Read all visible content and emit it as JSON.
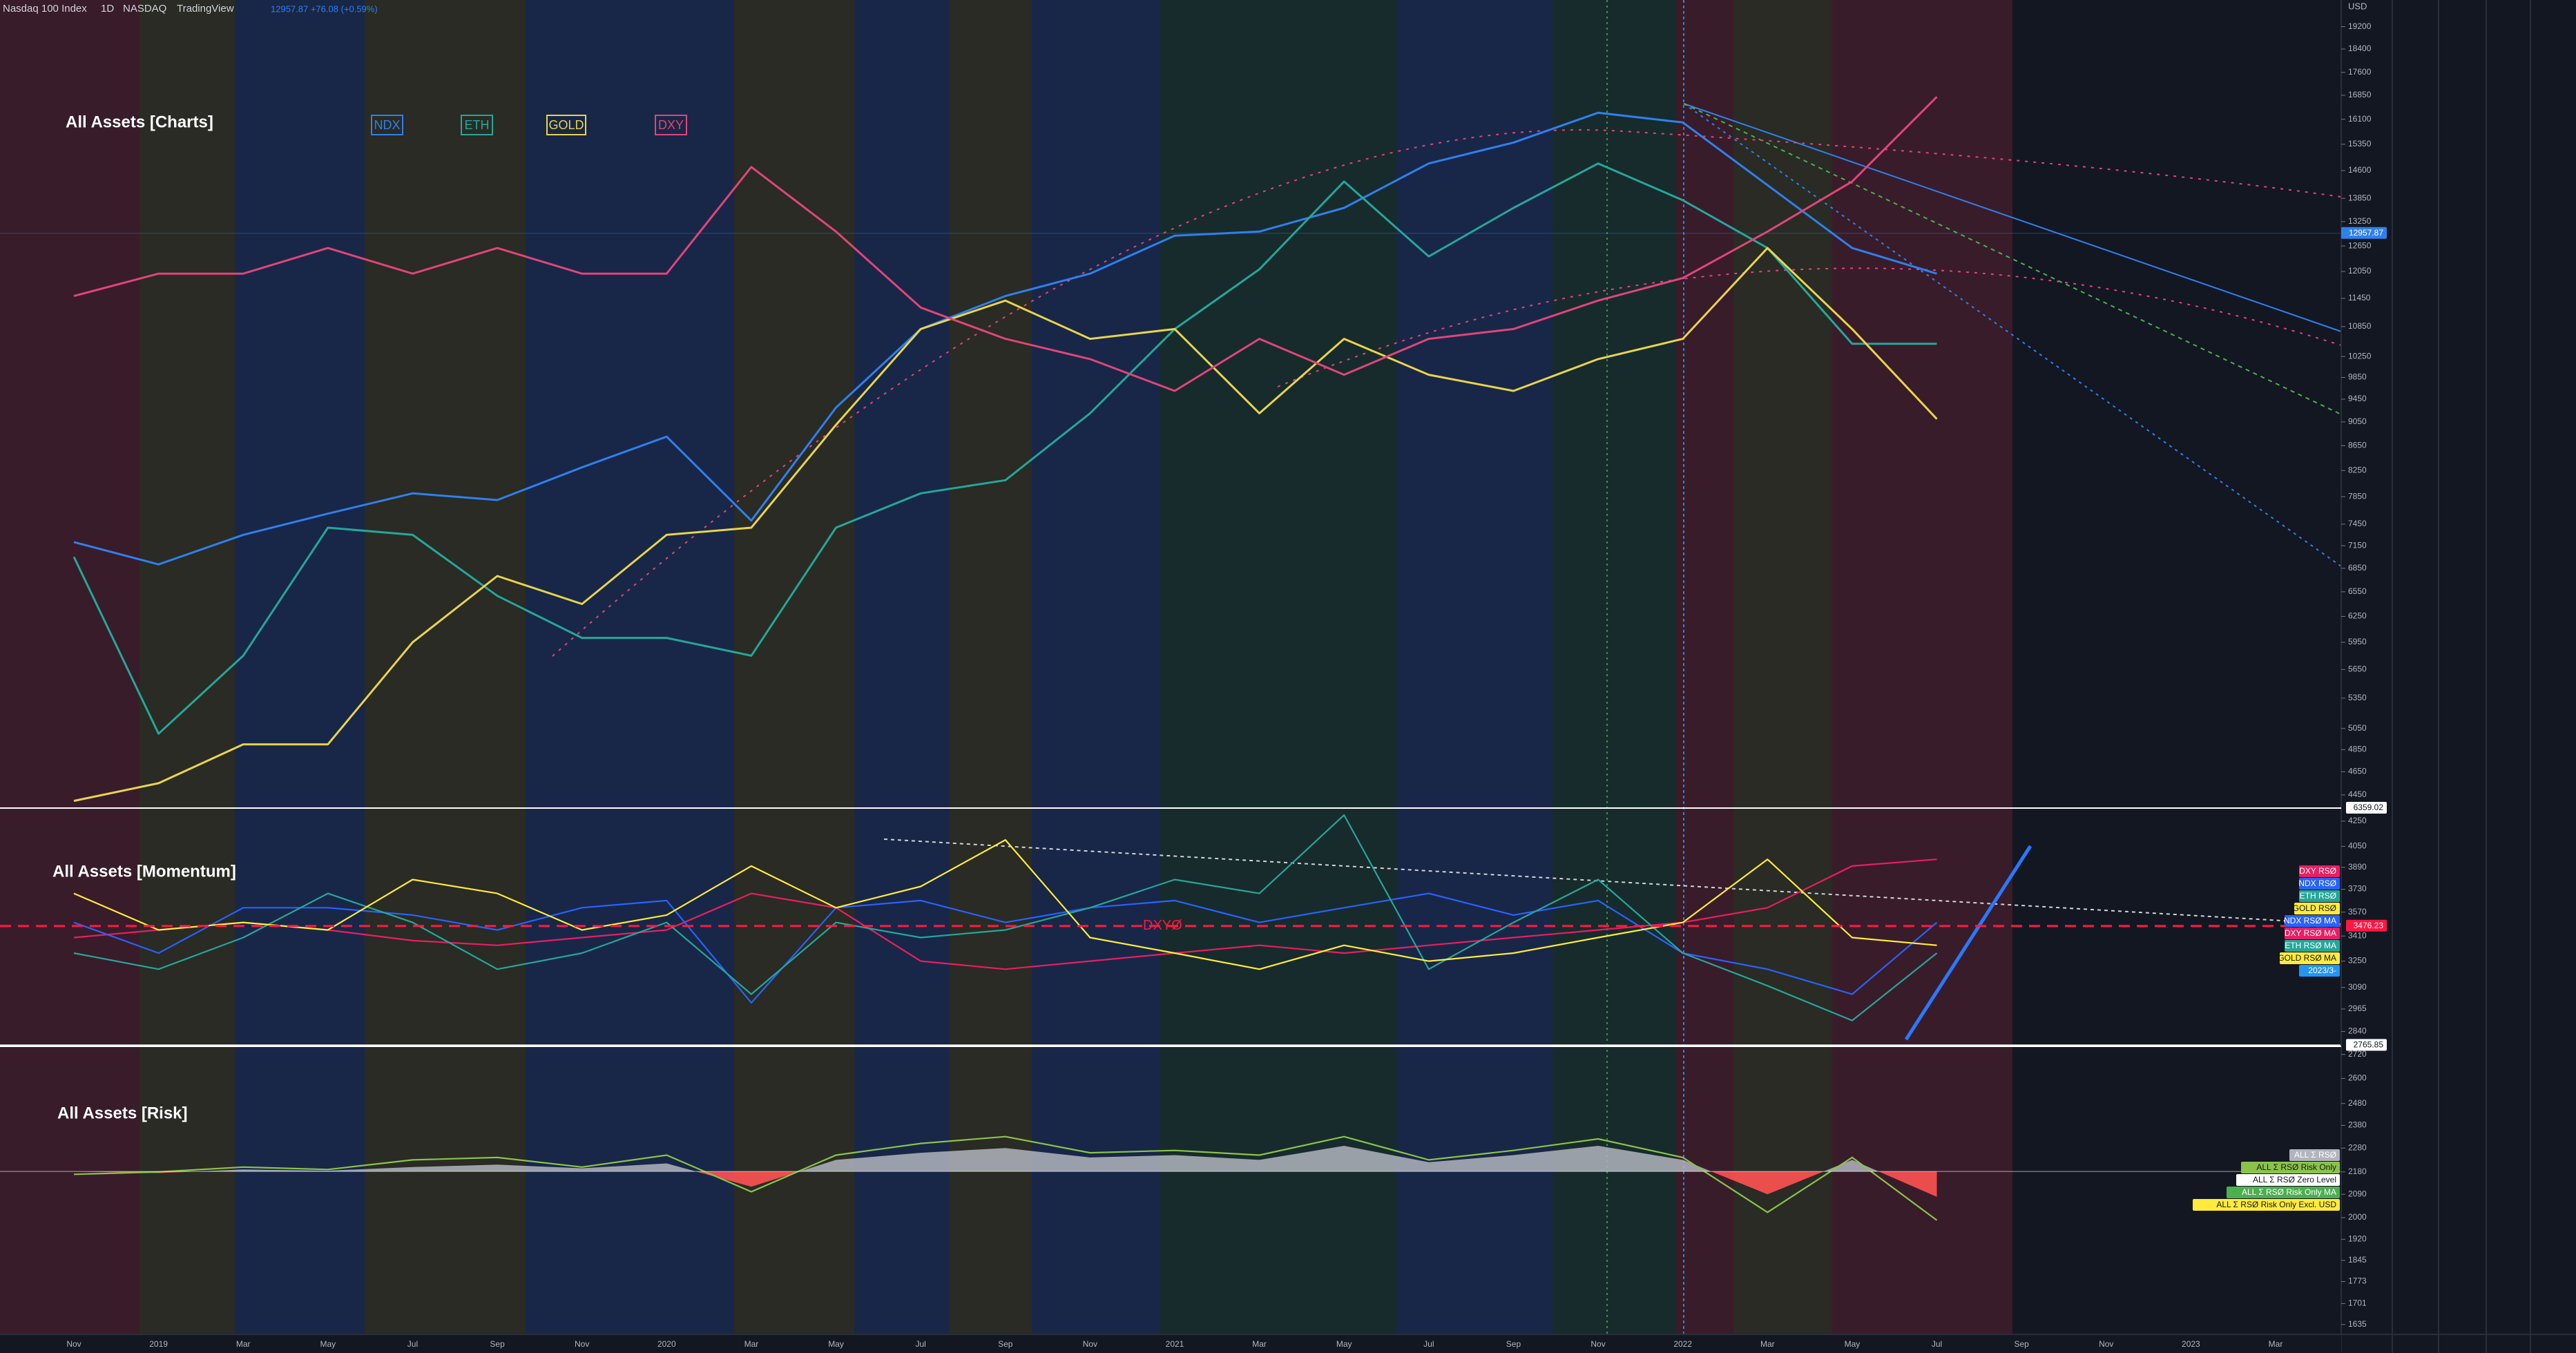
{
  "header": {
    "symbol": "Nasdaq 100 Index",
    "interval": "1D",
    "exchange": "NASDAQ",
    "source": "TradingView",
    "quote": "12957.87 +76.08 (+0.59%)",
    "axis_unit": "USD"
  },
  "chart_data": [
    {
      "type": "line",
      "title": "All Assets [Charts]",
      "log_scale": true,
      "grid": false,
      "legend": "top-left",
      "categories": [
        "Nov",
        "2019",
        "Mar",
        "May",
        "Jul",
        "Sep",
        "Nov",
        "2020",
        "Mar",
        "May",
        "Jul",
        "Sep",
        "Nov",
        "2021",
        "Mar",
        "May",
        "Jul",
        "Sep",
        "Nov",
        "2022",
        "Mar",
        "May",
        "Jul",
        "Sep",
        "Nov",
        "2023",
        "Mar"
      ],
      "ylim": [
        4340,
        20200
      ],
      "yticks": [
        19200,
        18400,
        17600,
        16850,
        16100,
        15350,
        14600,
        13850,
        13250,
        12650,
        12050,
        11450,
        10850,
        10250,
        9850,
        9450,
        9050,
        8650,
        8250,
        7850,
        7450,
        7150,
        6850,
        6550,
        6250,
        5950,
        5650,
        5350,
        5050,
        4850,
        4650,
        4450
      ],
      "series": [
        {
          "name": "NDX",
          "color": "#2f80ed",
          "values": [
            7200,
            6900,
            7300,
            7600,
            7900,
            7800,
            8300,
            8800,
            7500,
            9300,
            10800,
            11500,
            12000,
            12900,
            13000,
            13600,
            14800,
            15400,
            16300,
            16000,
            14200,
            12600,
            12000,
            null,
            null,
            null,
            null
          ]
        },
        {
          "name": "ETH",
          "color": "#26a69a",
          "values": [
            7000,
            5000,
            5800,
            7400,
            7300,
            6500,
            6000,
            6000,
            5800,
            7400,
            7900,
            8100,
            9200,
            10800,
            12100,
            14300,
            12400,
            13600,
            14800,
            13800,
            12600,
            10500,
            10500,
            null,
            null,
            null,
            null
          ]
        },
        {
          "name": "GOLD",
          "color": "#e8d44d",
          "values": [
            4400,
            4550,
            4900,
            4900,
            5950,
            6750,
            6400,
            7300,
            7400,
            9000,
            10800,
            11400,
            10600,
            10800,
            9200,
            10600,
            9900,
            9600,
            10200,
            10600,
            12600,
            10800,
            9100,
            null,
            null,
            null,
            null
          ]
        },
        {
          "name": "DXY",
          "color": "#e0457b",
          "values": [
            11500,
            12000,
            12000,
            12600,
            12000,
            12600,
            12000,
            12000,
            14700,
            13000,
            11250,
            10600,
            10200,
            9600,
            10600,
            9900,
            10600,
            10800,
            11400,
            11900,
            13000,
            14300,
            16800,
            null,
            null,
            null,
            null
          ]
        }
      ],
      "markers": [
        {
          "label": "12957.87",
          "value": 12957.87,
          "color": "#2f80ed"
        }
      ]
    },
    {
      "type": "line",
      "title": "All Assets [Momentum]",
      "log_scale": true,
      "grid": false,
      "top_label": "6359.02",
      "ylim": [
        2760,
        4358
      ],
      "yticks": [
        4250,
        4050,
        3890,
        3730,
        3570,
        3410,
        3250,
        3090,
        2965,
        2840
      ],
      "series": [
        {
          "name": "DXY RSØ",
          "color": "#e91e63",
          "values": [
            3400,
            3450,
            3500,
            3450,
            3380,
            3350,
            3400,
            3450,
            3700,
            3600,
            3250,
            3200,
            3250,
            3300,
            3350,
            3300,
            3350,
            3400,
            3450,
            3500,
            3600,
            3900,
            3950,
            null,
            null,
            null,
            null
          ]
        },
        {
          "name": "NDX RSØ",
          "color": "#2962ff",
          "values": [
            3500,
            3300,
            3600,
            3600,
            3550,
            3450,
            3600,
            3650,
            3000,
            3600,
            3650,
            3500,
            3600,
            3650,
            3500,
            3600,
            3700,
            3550,
            3650,
            3300,
            3200,
            3050,
            3500,
            null,
            null,
            null,
            null
          ]
        },
        {
          "name": "ETH RSØ",
          "color": "#26a69a",
          "values": [
            3300,
            3200,
            3400,
            3700,
            3500,
            3200,
            3300,
            3500,
            3050,
            3500,
            3400,
            3450,
            3600,
            3800,
            3700,
            4300,
            3200,
            3500,
            3800,
            3300,
            3100,
            2900,
            3300,
            null,
            null,
            null,
            null
          ]
        },
        {
          "name": "GOLD RSØ",
          "color": "#ffeb3b",
          "values": [
            3700,
            3450,
            3500,
            3450,
            3800,
            3700,
            3450,
            3550,
            3900,
            3600,
            3750,
            4100,
            3400,
            3300,
            3200,
            3350,
            3250,
            3300,
            3400,
            3500,
            3950,
            3400,
            3350,
            null,
            null,
            null,
            null
          ]
        }
      ],
      "markers": [
        {
          "label": "3476.23",
          "name": "DXYØ",
          "value": 3476.23,
          "color": "#ff1744"
        },
        {
          "label": "2765.85",
          "value": 2765.85,
          "color": "#ffffff"
        }
      ],
      "extra_labels": [
        {
          "text": "NDX RSØ MA",
          "color": "#2962ff"
        },
        {
          "text": "DXY RSØ MA",
          "color": "#e91e63"
        },
        {
          "text": "ETH RSØ MA",
          "color": "#26a69a"
        },
        {
          "text": "GOLD RSØ MA",
          "color": "#ffeb3b"
        },
        {
          "text": "2023/3-",
          "color": "#2196f3"
        }
      ]
    },
    {
      "type": "area",
      "title": "All Assets [Risk]",
      "log_scale": true,
      "grid": false,
      "ylim": [
        1605,
        2762
      ],
      "yticks": [
        2720,
        2600,
        2480,
        2380,
        2280,
        2180,
        2090,
        2000,
        1920,
        1845,
        1773,
        1701,
        1635
      ],
      "series": [
        {
          "name": "ALL Σ RSØ",
          "color": "#b2b5be",
          "negative_color": "#ff5252",
          "values": [
            2182,
            2175,
            2190,
            2185,
            2200,
            2210,
            2195,
            2215,
            2120,
            2230,
            2260,
            2280,
            2240,
            2250,
            2230,
            2290,
            2220,
            2250,
            2290,
            2230,
            2090,
            2230,
            2080,
            null,
            null,
            null,
            null
          ]
        },
        {
          "name": "ALL Σ RSØ Risk Only",
          "color": "#8bc34a",
          "values": [
            2170,
            2180,
            2200,
            2190,
            2230,
            2240,
            2200,
            2250,
            2100,
            2250,
            2300,
            2330,
            2260,
            2270,
            2250,
            2330,
            2230,
            2270,
            2320,
            2240,
            2020,
            2240,
            1990,
            null,
            null,
            null,
            null
          ]
        }
      ],
      "zero_level": {
        "label": "ALL Σ RSØ Zero Level",
        "value": 2182,
        "color": "#ffffff"
      },
      "extra_labels": [
        {
          "text": "ALL Σ RSØ Risk Only MA",
          "color": "#4caf50"
        },
        {
          "text": "ALL Σ RSØ Risk Only Excl. USD",
          "color": "#ffeb3b"
        }
      ]
    }
  ]
}
